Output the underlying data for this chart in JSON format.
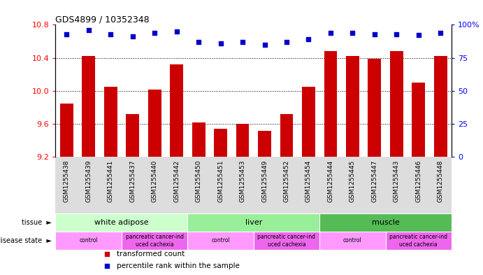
{
  "title": "GDS4899 / 10352348",
  "samples": [
    "GSM1255438",
    "GSM1255439",
    "GSM1255441",
    "GSM1255437",
    "GSM1255440",
    "GSM1255442",
    "GSM1255450",
    "GSM1255451",
    "GSM1255453",
    "GSM1255449",
    "GSM1255452",
    "GSM1255454",
    "GSM1255444",
    "GSM1255445",
    "GSM1255447",
    "GSM1255443",
    "GSM1255446",
    "GSM1255448"
  ],
  "bar_values": [
    9.85,
    10.42,
    10.05,
    9.72,
    10.02,
    10.32,
    9.62,
    9.54,
    9.6,
    9.52,
    9.72,
    10.05,
    10.48,
    10.42,
    10.39,
    10.48,
    10.1,
    10.42
  ],
  "percentile_values": [
    93,
    96,
    93,
    91,
    94,
    95,
    87,
    86,
    87,
    85,
    87,
    89,
    94,
    94,
    93,
    93,
    92,
    94
  ],
  "ylim_left": [
    9.2,
    10.8
  ],
  "ylim_right": [
    0,
    100
  ],
  "yticks_left": [
    9.2,
    9.6,
    10.0,
    10.4,
    10.8
  ],
  "yticks_right": [
    0,
    25,
    50,
    75,
    100
  ],
  "bar_color": "#cc0000",
  "dot_color": "#0000cc",
  "tissue_groups": [
    {
      "label": "white adipose",
      "start": 0,
      "end": 6,
      "color": "#ccffcc"
    },
    {
      "label": "liver",
      "start": 6,
      "end": 12,
      "color": "#99ee99"
    },
    {
      "label": "muscle",
      "start": 12,
      "end": 18,
      "color": "#55bb55"
    }
  ],
  "disease_groups": [
    {
      "label": "control",
      "start": 0,
      "end": 3,
      "color": "#ff99ff"
    },
    {
      "label": "pancreatic cancer-ind\nuced cachexia",
      "start": 3,
      "end": 6,
      "color": "#ee66ee"
    },
    {
      "label": "control",
      "start": 6,
      "end": 9,
      "color": "#ff99ff"
    },
    {
      "label": "pancreatic cancer-ind\nuced cachexia",
      "start": 9,
      "end": 12,
      "color": "#ee66ee"
    },
    {
      "label": "control",
      "start": 12,
      "end": 15,
      "color": "#ff99ff"
    },
    {
      "label": "pancreatic cancer-ind\nuced cachexia",
      "start": 15,
      "end": 18,
      "color": "#ee66ee"
    }
  ]
}
